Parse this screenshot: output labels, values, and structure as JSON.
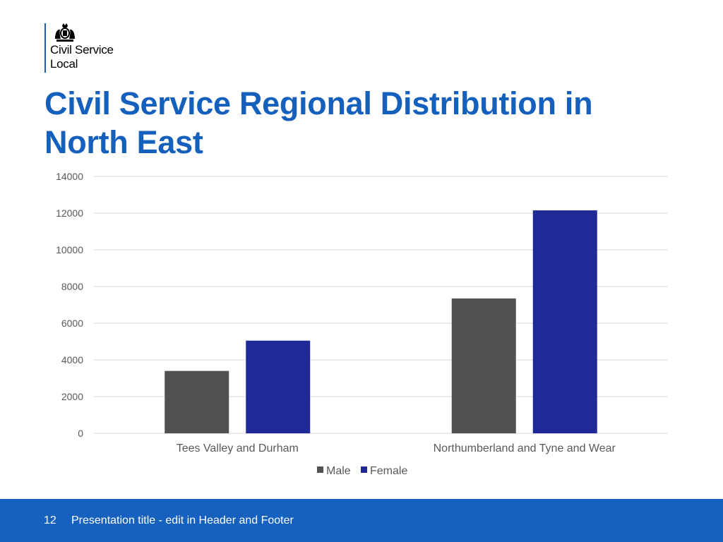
{
  "logo": {
    "name_line1": "Civil Service",
    "name_line2": "Local",
    "crest_icon": "royal-coat-of-arms-icon"
  },
  "slide": {
    "title": "Civil Service Regional Distribution in North East"
  },
  "footer": {
    "page_number": "12",
    "text": "Presentation title - edit in Header and Footer",
    "background": "#1661be"
  },
  "colors": {
    "title": "#1560bd",
    "male": "#505153",
    "female": "#1f2a96",
    "grid": "#d9d9d9"
  },
  "chart_data": {
    "type": "bar",
    "title": "",
    "xlabel": "",
    "ylabel": "",
    "categories": [
      "Tees Valley and Durham",
      "Northumberland and Tyne and Wear"
    ],
    "series": [
      {
        "name": "Male",
        "values": [
          3400,
          7350
        ],
        "color": "#505153"
      },
      {
        "name": "Female",
        "values": [
          5050,
          12150
        ],
        "color": "#1f2a96"
      }
    ],
    "ylim": [
      0,
      14000
    ],
    "yticks": [
      0,
      2000,
      4000,
      6000,
      8000,
      10000,
      12000,
      14000
    ],
    "grid": true,
    "legend_position": "bottom"
  }
}
